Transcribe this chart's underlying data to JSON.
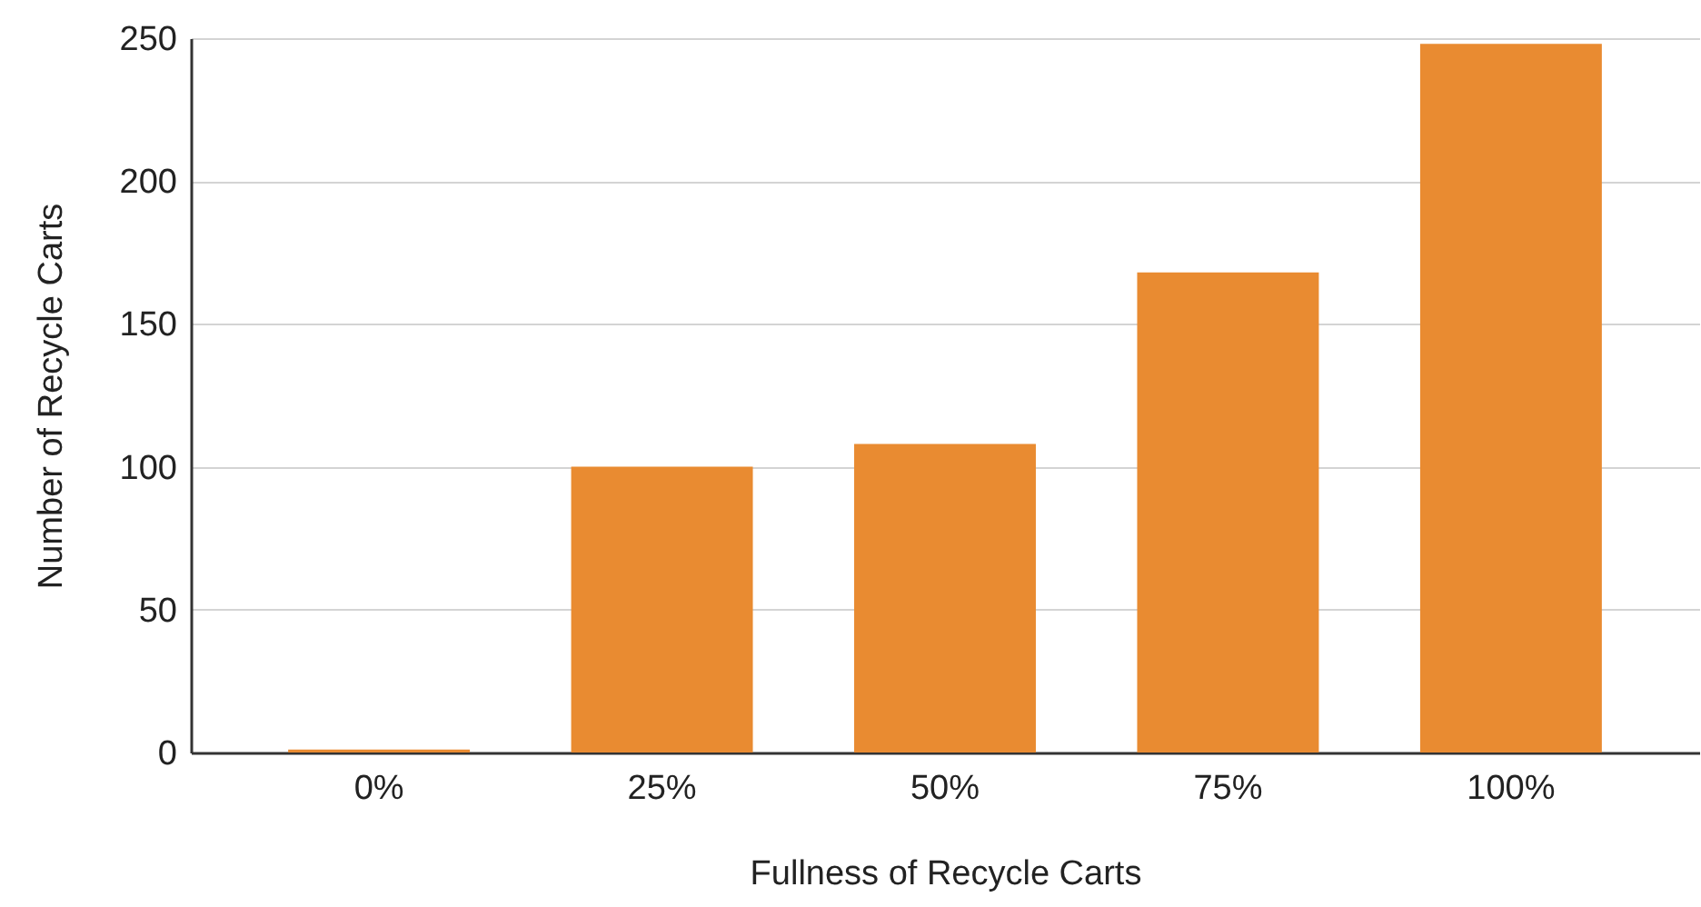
{
  "chart_data": {
    "type": "bar",
    "xlabel": "Fullness of Recycle Carts",
    "ylabel": "Number of Recycle Carts",
    "categories": [
      "0%",
      "25%",
      "50%",
      "75%",
      "100%"
    ],
    "values": [
      1,
      100,
      108,
      168,
      248
    ],
    "color": "#e98b31",
    "ylim": [
      0,
      250
    ],
    "yticks": [
      0,
      50,
      100,
      150,
      200,
      250
    ],
    "grid": "y"
  }
}
